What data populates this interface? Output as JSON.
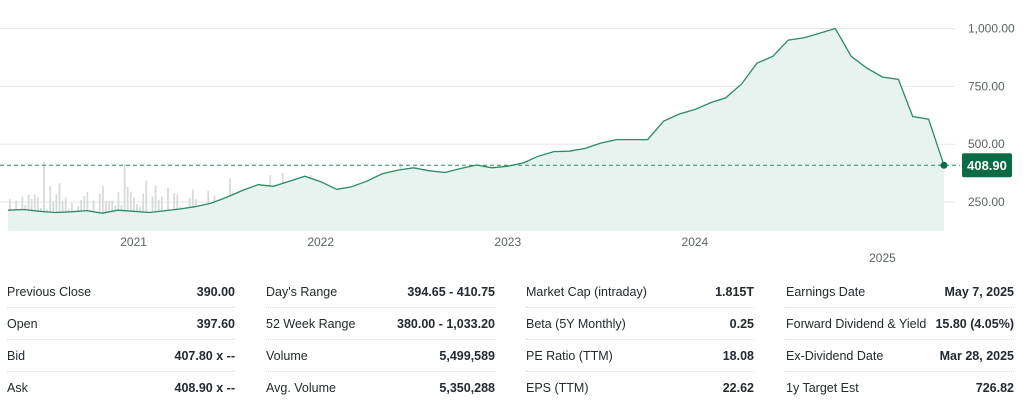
{
  "chart_data": {
    "type": "area",
    "series": [
      {
        "x": [
          "2020-05",
          "2020-06",
          "2020-07",
          "2020-08",
          "2020-09",
          "2020-10",
          "2020-11",
          "2020-12",
          "2021-01",
          "2021-02",
          "2021-03",
          "2021-04",
          "2021-05",
          "2021-06",
          "2021-07",
          "2021-08",
          "2021-09",
          "2021-10",
          "2021-11",
          "2021-12",
          "2022-01",
          "2022-02",
          "2022-03",
          "2022-04",
          "2022-05",
          "2022-06",
          "2022-07",
          "2022-08",
          "2022-09",
          "2022-10",
          "2022-11",
          "2022-12",
          "2023-01",
          "2023-02",
          "2023-03",
          "2023-04",
          "2023-05",
          "2023-06",
          "2023-07",
          "2023-08",
          "2023-09",
          "2023-10",
          "2023-11",
          "2023-12",
          "2024-01",
          "2024-02",
          "2024-03",
          "2024-04",
          "2024-05",
          "2024-06",
          "2024-07",
          "2024-08",
          "2024-09",
          "2024-10",
          "2024-11",
          "2024-12",
          "2025-01",
          "2025-02",
          "2025-03",
          "2025-04",
          "2025-05"
        ],
        "values": [
          215,
          218,
          210,
          205,
          208,
          213,
          202,
          215,
          210,
          205,
          212,
          220,
          230,
          245,
          270,
          300,
          325,
          318,
          340,
          362,
          338,
          305,
          315,
          340,
          372,
          388,
          398,
          385,
          378,
          395,
          410,
          398,
          405,
          420,
          448,
          468,
          470,
          482,
          505,
          520,
          520,
          520,
          600,
          630,
          650,
          680,
          700,
          760,
          850,
          880,
          950,
          960,
          980,
          1000,
          880,
          830,
          790,
          780,
          620,
          608,
          408.9
        ]
      }
    ],
    "ylim": [
      125,
      1080
    ],
    "yticks": [
      "250.00",
      "500.00",
      "750.00",
      "1,000.00"
    ],
    "ytick_values": [
      250,
      500,
      750,
      1000
    ],
    "xticks": [
      "2021",
      "2022",
      "2023",
      "2024",
      "2025"
    ],
    "current_price": 408.9,
    "current_label": "408.90",
    "grid": true,
    "colors": {
      "line": "#2e8b63",
      "fill": "#e6f3ee",
      "price_tag": "#0a6b45",
      "volume": "#d7d9db"
    }
  },
  "stats": {
    "col1": [
      {
        "label": "Previous Close",
        "value": "390.00"
      },
      {
        "label": "Open",
        "value": "397.60"
      },
      {
        "label": "Bid",
        "value": "407.80 x --"
      },
      {
        "label": "Ask",
        "value": "408.90 x --"
      }
    ],
    "col2": [
      {
        "label": "Day's Range",
        "value": "394.65 - 410.75"
      },
      {
        "label": "52 Week Range",
        "value": "380.00 - 1,033.20"
      },
      {
        "label": "Volume",
        "value": "5,499,589"
      },
      {
        "label": "Avg. Volume",
        "value": "5,350,288"
      }
    ],
    "col3": [
      {
        "label": "Market Cap (intraday)",
        "value": "1.815T"
      },
      {
        "label": "Beta (5Y Monthly)",
        "value": "0.25"
      },
      {
        "label": "PE Ratio (TTM)",
        "value": "18.08"
      },
      {
        "label": "EPS (TTM)",
        "value": "22.62"
      }
    ],
    "col4": [
      {
        "label": "Earnings Date",
        "value": "May 7, 2025"
      },
      {
        "label": "Forward Dividend & Yield",
        "value": "15.80 (4.05%)"
      },
      {
        "label": "Ex-Dividend Date",
        "value": "Mar 28, 2025"
      },
      {
        "label": "1y Target Est",
        "value": "726.82"
      }
    ]
  }
}
